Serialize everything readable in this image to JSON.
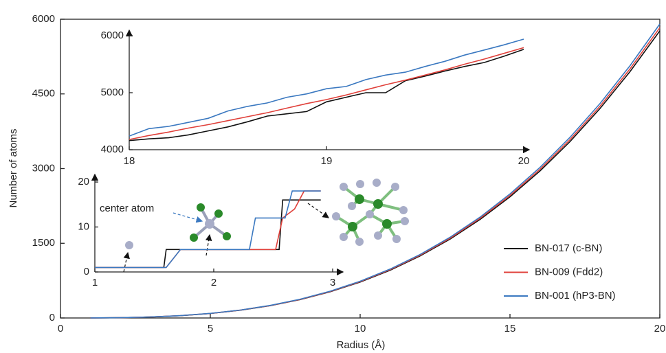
{
  "chart_data": [
    {
      "type": "line",
      "xlabel": "Radius (Å)",
      "ylabel": "Number of atoms",
      "x": [
        1,
        2,
        3,
        4,
        5,
        6,
        7,
        8,
        9,
        10,
        11,
        12,
        13,
        14,
        15,
        16,
        17,
        18,
        19,
        20
      ],
      "xlim": [
        0,
        20
      ],
      "xticks": [
        0,
        5,
        10,
        15,
        20
      ],
      "ylim": [
        0,
        6000
      ],
      "yticks": [
        0,
        1500,
        3000,
        4500,
        6000
      ],
      "legend": "lower right",
      "series": [
        {
          "name": "BN-017 (c-BN)",
          "color": "#111111",
          "values": [
            1,
            6,
            19,
            46,
            90,
            156,
            247,
            369,
            525,
            721,
            959,
            1246,
            1584,
            1978,
            2433,
            2952,
            3541,
            4204,
            4944,
            5766
          ]
        },
        {
          "name": "BN-009 (Fdd2)",
          "color": "#e0403a",
          "values": [
            1,
            6,
            20,
            47,
            91,
            157,
            250,
            373,
            531,
            729,
            970,
            1259,
            1601,
            2000,
            2460,
            2985,
            3581,
            4250,
            4999,
            5830
          ]
        },
        {
          "name": "BN-001 (hP3-BN)",
          "color": "#3a78c0",
          "values": [
            1,
            6,
            20,
            47,
            92,
            159,
            253,
            378,
            538,
            738,
            982,
            1275,
            1621,
            2025,
            2491,
            3023,
            3626,
            4304,
            5062,
            5904
          ]
        }
      ]
    },
    {
      "type": "line",
      "x": [
        18,
        18.1,
        18.2,
        18.3,
        18.4,
        18.5,
        18.6,
        18.7,
        18.8,
        18.9,
        19,
        19.1,
        19.2,
        19.3,
        19.4,
        19.5,
        19.6,
        19.7,
        19.8,
        19.9,
        20
      ],
      "xlim": [
        18,
        20
      ],
      "xticks": [
        18,
        19,
        20
      ],
      "ylim": [
        4000,
        6000
      ],
      "yticks": [
        4000,
        5000,
        6000
      ],
      "series": [
        {
          "color": "#111111",
          "values": [
            4160,
            4190,
            4210,
            4260,
            4330,
            4400,
            4490,
            4590,
            4630,
            4670,
            4840,
            4920,
            5000,
            5000,
            5210,
            5290,
            5380,
            5460,
            5530,
            5640,
            5760
          ]
        },
        {
          "color": "#e0403a",
          "values": [
            4180,
            4250,
            4310,
            4380,
            4440,
            4510,
            4580,
            4650,
            4730,
            4810,
            4880,
            4960,
            5050,
            5140,
            5220,
            5310,
            5400,
            5500,
            5590,
            5690,
            5790
          ]
        },
        {
          "color": "#3a78c0",
          "values": [
            4240,
            4370,
            4410,
            4480,
            4550,
            4680,
            4760,
            4820,
            4920,
            4980,
            5070,
            5110,
            5230,
            5310,
            5360,
            5460,
            5550,
            5660,
            5750,
            5840,
            5940
          ]
        }
      ]
    },
    {
      "type": "step",
      "annotation": "center atom",
      "xlim": [
        1,
        3
      ],
      "xticks": [
        1,
        2,
        3
      ],
      "ylim": [
        0,
        21
      ],
      "yticks": [
        0,
        10,
        20
      ],
      "series": [
        {
          "color": "#111111",
          "x": [
            1,
            1.58,
            1.6,
            2.55,
            2.58,
            2.9
          ],
          "values": [
            1,
            1,
            5,
            5,
            16,
            16
          ]
        },
        {
          "color": "#e0403a",
          "x": [
            1,
            1.6,
            1.72,
            2.52,
            2.58,
            2.68,
            2.76,
            2.9
          ],
          "values": [
            1,
            1,
            5,
            5,
            12,
            14,
            18,
            18
          ]
        },
        {
          "color": "#3a78c0",
          "x": [
            1,
            1.6,
            1.72,
            2.3,
            2.35,
            2.6,
            2.66,
            2.9
          ],
          "values": [
            1,
            1,
            5,
            5,
            12,
            12,
            18,
            18
          ]
        }
      ]
    }
  ]
}
